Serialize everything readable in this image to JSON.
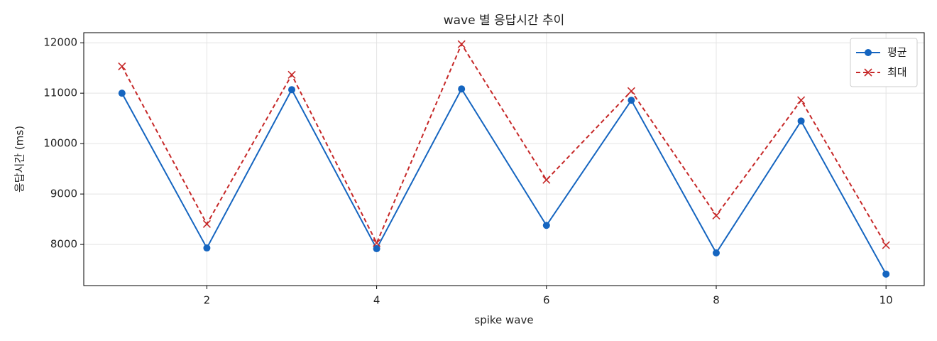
{
  "chart_data": {
    "type": "line",
    "title": "wave 별 응답시간 추이",
    "x_label": "spike wave",
    "y_label": "응답시간 (ms)",
    "x": [
      1,
      2,
      3,
      4,
      5,
      6,
      7,
      8,
      9,
      10
    ],
    "series": [
      {
        "name": "평균",
        "color": "#1565c0",
        "marker": "o",
        "linestyle": "solid",
        "values": [
          11000,
          7930,
          11070,
          7916,
          11084,
          8378,
          10860,
          7832,
          10448,
          7412
        ]
      },
      {
        "name": "최대",
        "color": "#c62828",
        "marker": "x",
        "linestyle": "dashed",
        "values": [
          11532,
          8406,
          11364,
          8028,
          11972,
          9280,
          11042,
          8573,
          10860,
          7986
        ]
      }
    ],
    "xlim": [
      0.55,
      10.45
    ],
    "xticks": [
      2,
      4,
      6,
      8,
      10
    ],
    "ylim": [
      7184,
      12200
    ],
    "yticks": [
      8000,
      9000,
      10000,
      11000,
      12000
    ],
    "grid": true,
    "legend": "upper right"
  }
}
